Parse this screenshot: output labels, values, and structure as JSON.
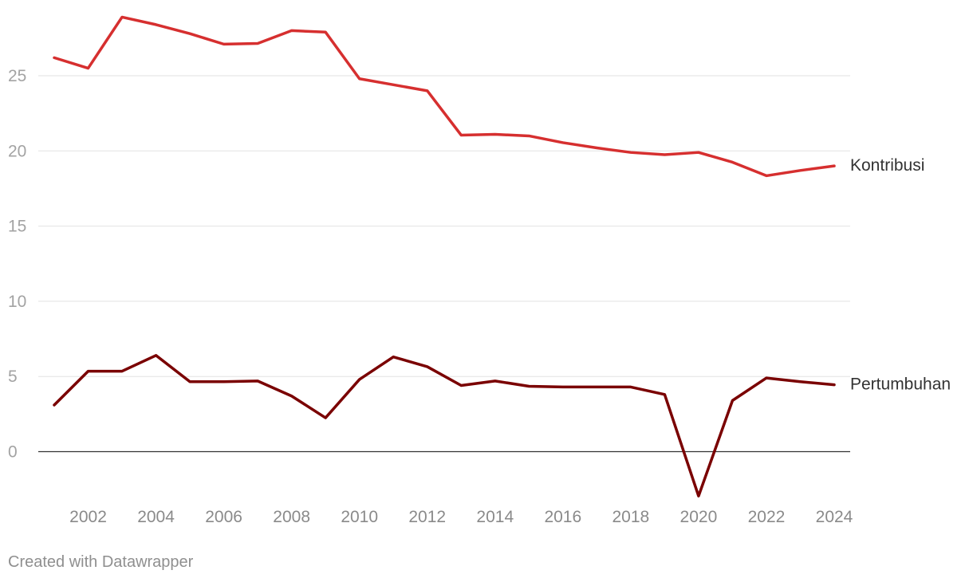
{
  "chart_data": {
    "type": "line",
    "title": "",
    "xlabel": "",
    "ylabel": "",
    "x": [
      2001,
      2002,
      2003,
      2004,
      2005,
      2006,
      2007,
      2008,
      2009,
      2010,
      2011,
      2012,
      2013,
      2014,
      2015,
      2016,
      2017,
      2018,
      2019,
      2020,
      2021,
      2022,
      2023,
      2024
    ],
    "x_ticks": [
      "2002",
      "2004",
      "2006",
      "2008",
      "2010",
      "2012",
      "2014",
      "2016",
      "2018",
      "2020",
      "2022",
      "2024"
    ],
    "y_ticks": [
      "0",
      "5",
      "10",
      "15",
      "20",
      "25"
    ],
    "xlim": [
      2001,
      2024
    ],
    "ylim": [
      -3,
      29
    ],
    "grid": true,
    "legend": "direct labels at line ends",
    "series": [
      {
        "name": "Kontribusi",
        "color": "#d62f2f",
        "values": [
          26.2,
          25.5,
          28.9,
          28.4,
          27.8,
          27.1,
          27.15,
          28.0,
          27.9,
          24.8,
          24.4,
          24.0,
          21.05,
          21.1,
          21.0,
          20.55,
          20.2,
          19.9,
          19.75,
          19.9,
          19.25,
          18.35,
          18.7,
          19.0
        ]
      },
      {
        "name": "Pertumbuhan",
        "color": "#7a0000",
        "values": [
          3.1,
          5.35,
          5.35,
          6.4,
          4.65,
          4.65,
          4.7,
          3.7,
          2.25,
          4.8,
          6.3,
          5.65,
          4.4,
          4.7,
          4.35,
          4.3,
          4.3,
          4.3,
          3.8,
          -2.95,
          3.4,
          4.9,
          4.65,
          4.45
        ]
      }
    ]
  },
  "footer": {
    "credit": "Created with Datawrapper"
  }
}
